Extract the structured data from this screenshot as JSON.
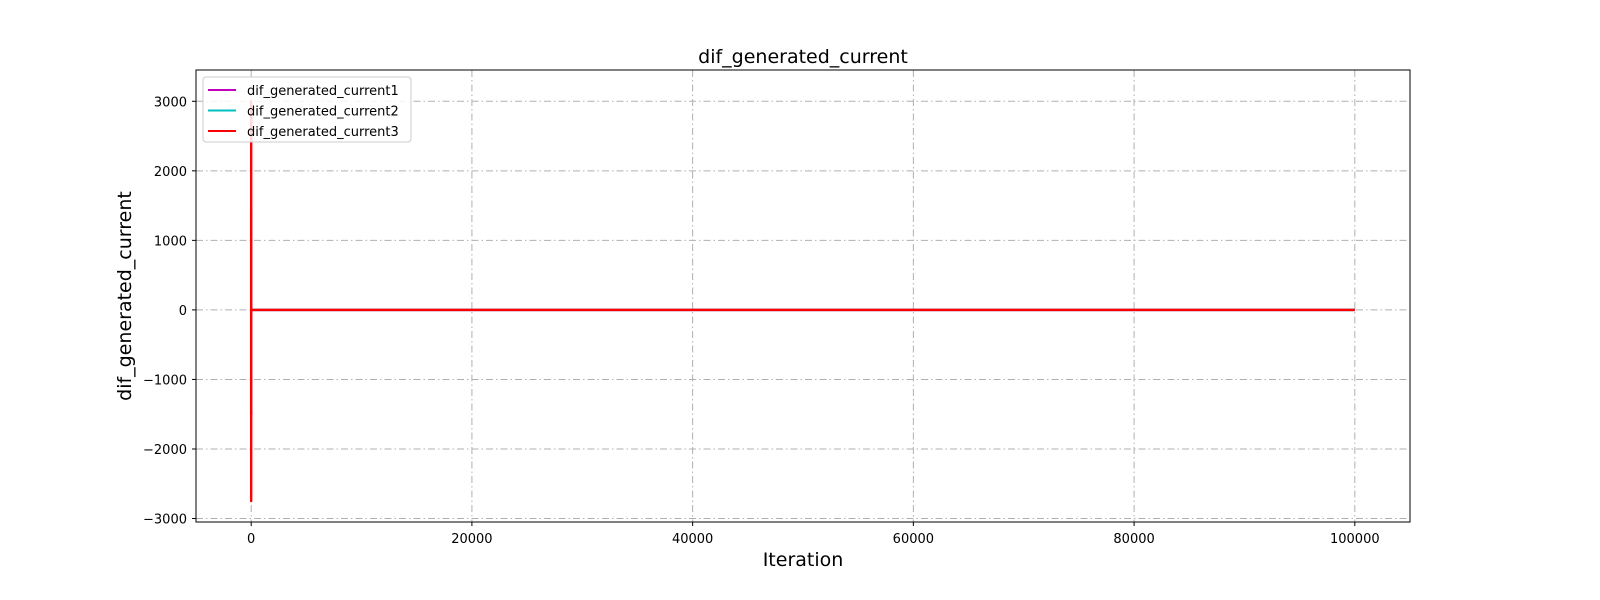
{
  "chart_data": {
    "type": "line",
    "title": "dif_generated_current",
    "xlabel": "Iteration",
    "ylabel": "dif_generated_current",
    "xlim": [
      -5000,
      105000
    ],
    "ylim": [
      -3050,
      3450
    ],
    "xticks": [
      0,
      20000,
      40000,
      60000,
      80000,
      100000
    ],
    "yticks": [
      -3000,
      -2000,
      -1000,
      0,
      1000,
      2000,
      3000
    ],
    "grid": true,
    "legend_position": "upper-left",
    "series": [
      {
        "name": "dif_generated_current1",
        "color": "#bf00bf",
        "x": [
          0,
          0,
          0,
          0,
          100,
          100000
        ],
        "y": [
          0,
          1400,
          -1500,
          0,
          0,
          0
        ]
      },
      {
        "name": "dif_generated_current2",
        "color": "#00bfbf",
        "x": [
          0,
          0,
          0,
          0,
          100,
          100000
        ],
        "y": [
          0,
          1450,
          -1450,
          0,
          0,
          0
        ]
      },
      {
        "name": "dif_generated_current3",
        "color": "#ff0000",
        "x": [
          0,
          0,
          0,
          0,
          100,
          100000
        ],
        "y": [
          0,
          3000,
          -2750,
          0,
          0,
          0
        ]
      }
    ]
  }
}
